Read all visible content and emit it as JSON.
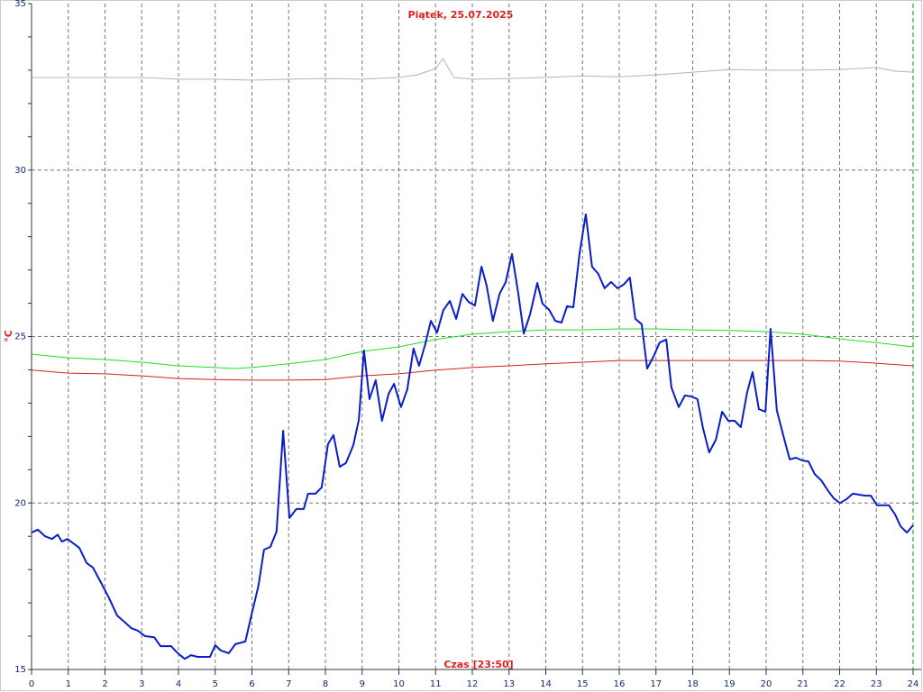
{
  "chart_data": {
    "type": "line",
    "title": "Piątek, 25.07.2025",
    "x_label": "Czas [23:50]",
    "y_label": "°C",
    "xlim": [
      0,
      24
    ],
    "ylim": [
      15,
      35
    ],
    "xticks": [
      0,
      1,
      2,
      3,
      4,
      5,
      6,
      7,
      8,
      9,
      10,
      11,
      12,
      13,
      14,
      15,
      16,
      17,
      18,
      19,
      20,
      21,
      22,
      23,
      24
    ],
    "yticks": [
      15,
      20,
      25,
      30,
      35
    ],
    "y_minor_ticks": [
      16,
      17,
      18,
      19,
      21,
      22,
      23,
      24,
      26,
      27,
      28,
      29,
      31,
      32,
      33,
      34
    ],
    "grid": true,
    "vline": {
      "x": 24,
      "color": "#009900"
    },
    "series": [
      {
        "color": "#b4b4b4",
        "width": 1,
        "x": [
          0,
          1,
          2,
          3,
          4,
          5,
          6,
          7,
          8,
          9,
          10,
          10.5,
          11,
          11.2,
          11.5,
          12,
          13,
          14,
          15,
          16,
          17,
          18,
          19,
          20,
          21,
          22,
          23,
          23.5,
          24
        ],
        "values": [
          32.78,
          32.78,
          32.78,
          32.78,
          32.73,
          32.73,
          32.7,
          32.73,
          32.75,
          32.73,
          32.78,
          32.86,
          33.05,
          33.35,
          32.78,
          32.73,
          32.75,
          32.78,
          32.83,
          32.8,
          32.86,
          32.94,
          33.02,
          33.0,
          33.0,
          33.02,
          33.08,
          32.97,
          32.94
        ]
      },
      {
        "color": "#22dd22",
        "width": 1,
        "x": [
          0,
          1,
          2,
          3,
          4,
          5,
          5.5,
          6,
          7,
          8,
          9,
          10,
          11,
          12,
          13,
          14,
          15,
          16,
          17,
          18,
          19,
          20,
          21,
          22,
          23,
          24
        ],
        "values": [
          24.47,
          24.36,
          24.31,
          24.23,
          24.12,
          24.07,
          24.04,
          24.07,
          24.18,
          24.31,
          24.55,
          24.69,
          24.91,
          25.07,
          25.15,
          25.2,
          25.2,
          25.23,
          25.23,
          25.2,
          25.18,
          25.15,
          25.07,
          24.93,
          24.82,
          24.69
        ]
      },
      {
        "color": "#d42020",
        "width": 1,
        "x": [
          0,
          1,
          2,
          3,
          4,
          5,
          6,
          7,
          8,
          9,
          10,
          11,
          12,
          13,
          14,
          15,
          16,
          17,
          18,
          19,
          20,
          21,
          22,
          23,
          24
        ],
        "values": [
          23.99,
          23.9,
          23.88,
          23.82,
          23.74,
          23.71,
          23.69,
          23.69,
          23.71,
          23.82,
          23.88,
          23.99,
          24.07,
          24.12,
          24.18,
          24.23,
          24.28,
          24.28,
          24.28,
          24.28,
          24.28,
          24.28,
          24.26,
          24.2,
          24.12
        ]
      },
      {
        "color": "#0a1ec8",
        "width": 2,
        "x": [
          0,
          0.17,
          0.37,
          0.56,
          0.71,
          0.83,
          0.98,
          1.3,
          1.5,
          1.67,
          1.91,
          2.13,
          2.33,
          2.53,
          2.72,
          2.9,
          3.09,
          3.34,
          3.51,
          3.8,
          3.98,
          4.17,
          4.34,
          4.52,
          4.86,
          5.0,
          5.15,
          5.37,
          5.55,
          5.82,
          5.99,
          6.18,
          6.33,
          6.5,
          6.67,
          6.85,
          7.02,
          7.21,
          7.41,
          7.53,
          7.73,
          7.9,
          8.07,
          8.22,
          8.39,
          8.56,
          8.76,
          8.91,
          9.05,
          9.2,
          9.37,
          9.54,
          9.72,
          9.87,
          10.06,
          10.23,
          10.4,
          10.55,
          10.72,
          10.87,
          11.04,
          11.21,
          11.39,
          11.56,
          11.73,
          11.9,
          12.07,
          12.25,
          12.39,
          12.56,
          12.74,
          12.91,
          13.08,
          13.25,
          13.4,
          13.57,
          13.77,
          13.91,
          14.09,
          14.26,
          14.43,
          14.58,
          14.75,
          14.92,
          15.09,
          15.26,
          15.43,
          15.6,
          15.78,
          15.95,
          16.12,
          16.29,
          16.44,
          16.61,
          16.76,
          16.93,
          17.1,
          17.28,
          17.42,
          17.62,
          17.79,
          17.96,
          18.13,
          18.28,
          18.45,
          18.63,
          18.8,
          18.97,
          19.14,
          19.31,
          19.48,
          19.63,
          19.8,
          19.98,
          20.12,
          20.29,
          20.47,
          20.64,
          20.81,
          20.98,
          21.15,
          21.32,
          21.5,
          21.67,
          21.84,
          22.01,
          22.18,
          22.36,
          22.53,
          22.7,
          22.85,
          23.02,
          23.34,
          23.51,
          23.66,
          23.83,
          24.0
        ],
        "values": [
          19.11,
          19.2,
          19.0,
          18.92,
          19.05,
          18.84,
          18.92,
          18.65,
          18.2,
          18.06,
          17.57,
          17.1,
          16.62,
          16.43,
          16.24,
          16.16,
          16.0,
          15.97,
          15.7,
          15.7,
          15.49,
          15.32,
          15.43,
          15.38,
          15.38,
          15.73,
          15.57,
          15.49,
          15.76,
          15.84,
          16.65,
          17.52,
          18.6,
          18.68,
          19.14,
          22.17,
          19.55,
          19.82,
          19.82,
          20.28,
          20.28,
          20.47,
          21.77,
          22.04,
          21.09,
          21.2,
          21.74,
          22.5,
          24.58,
          23.12,
          23.69,
          22.47,
          23.28,
          23.58,
          22.88,
          23.42,
          24.64,
          24.12,
          24.77,
          25.47,
          25.12,
          25.79,
          26.07,
          25.53,
          26.28,
          26.04,
          25.93,
          27.1,
          26.53,
          25.47,
          26.28,
          26.64,
          27.48,
          26.31,
          25.09,
          25.66,
          26.61,
          25.99,
          25.8,
          25.47,
          25.42,
          25.91,
          25.88,
          27.5,
          28.67,
          27.1,
          26.88,
          26.45,
          26.64,
          26.45,
          26.56,
          26.77,
          25.53,
          25.37,
          24.04,
          24.39,
          24.82,
          24.91,
          23.47,
          22.88,
          23.23,
          23.2,
          23.12,
          22.25,
          21.52,
          21.9,
          22.74,
          22.47,
          22.47,
          22.28,
          23.31,
          23.93,
          22.82,
          22.74,
          25.23,
          22.79,
          22.01,
          21.31,
          21.36,
          21.28,
          21.25,
          20.87,
          20.68,
          20.39,
          20.14,
          20.0,
          20.11,
          20.28,
          20.25,
          20.22,
          20.22,
          19.93,
          19.93,
          19.66,
          19.3,
          19.11,
          19.33
        ]
      }
    ]
  }
}
